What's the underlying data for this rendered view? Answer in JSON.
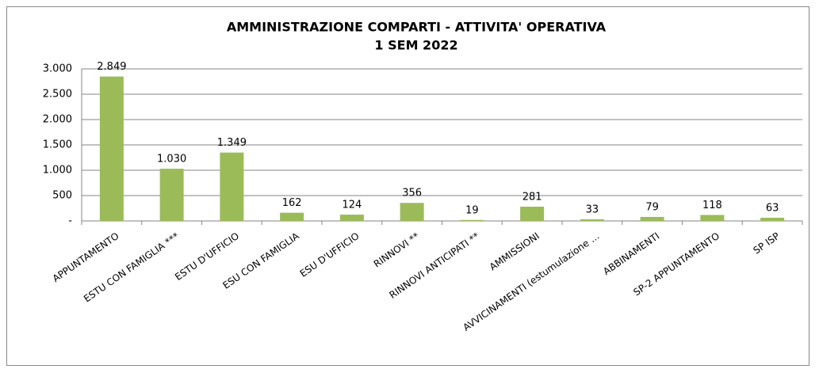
{
  "chart_data": {
    "type": "bar",
    "title": "AMMINISTRAZIONE COMPARTI - ATTIVITA' OPERATIVA",
    "subtitle": "1 SEM 2022",
    "categories": [
      "APPUNTAMENTO",
      "ESTU CON FAMIGLIA ***",
      "ESTU D'UFFICIO",
      "ESU CON FAMIGLIA",
      "ESU D'UFFICIO",
      "RINNOVI **",
      "RINNOVI  ANTICIPATI **",
      "AMMISSIONI",
      "AVVICINAMENTI  (estumulazione …",
      "ABBINAMENTI",
      "SP-2 APPUNTAMENTO",
      "SP ISP"
    ],
    "values": [
      2849,
      1030,
      1349,
      162,
      124,
      356,
      19,
      281,
      33,
      79,
      118,
      63
    ],
    "value_labels": [
      "2.849",
      "1.030",
      "1.349",
      "162",
      "124",
      "356",
      "19",
      "281",
      "33",
      "79",
      "118",
      "63"
    ],
    "color": "#9bbb59",
    "ylim": [
      0,
      3000
    ],
    "yticks": [
      {
        "value": 0,
        "label": "-"
      },
      500,
      {
        "value": 1000,
        "label": "1.000"
      },
      {
        "value": 1500,
        "label": "1.500"
      },
      {
        "value": 2000,
        "label": "2.000"
      },
      {
        "value": 2500,
        "label": "2.500"
      },
      {
        "value": 3000,
        "label": "3.000"
      }
    ],
    "grid": true
  }
}
